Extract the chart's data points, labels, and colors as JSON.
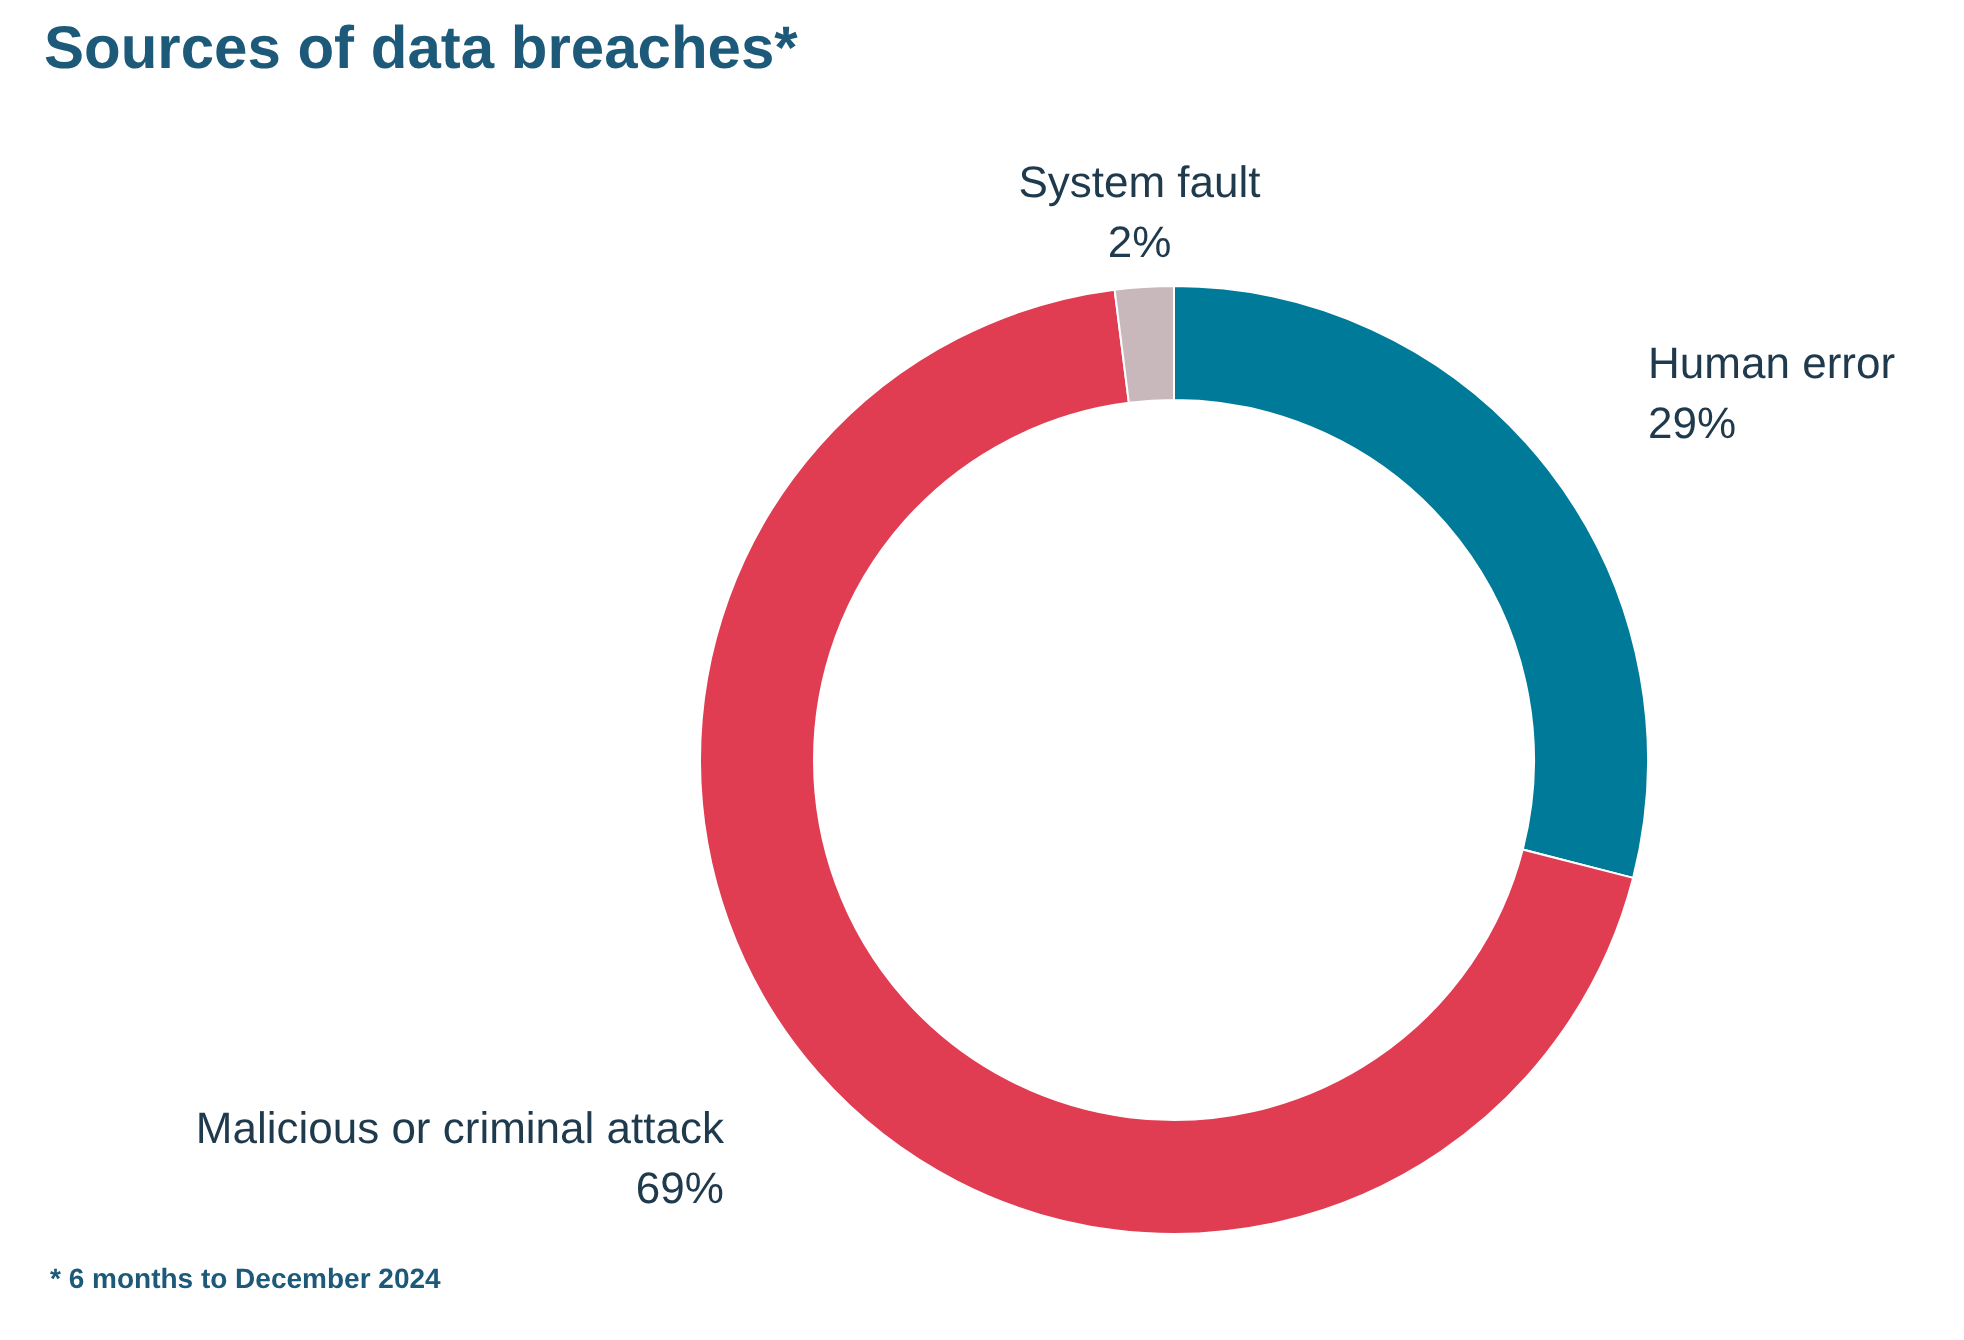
{
  "chart_data": {
    "type": "donut",
    "title": "Sources of data breaches*",
    "categories": [
      "Human error",
      "Malicious or criminal attack",
      "System fault"
    ],
    "values": [
      29,
      69,
      2
    ],
    "value_labels": [
      "29%",
      "69%",
      "2%"
    ],
    "colors": [
      "#007a99",
      "#e03c52",
      "#c8b8bc"
    ],
    "annotations": [
      "* 6 months to December 2024"
    ]
  }
}
